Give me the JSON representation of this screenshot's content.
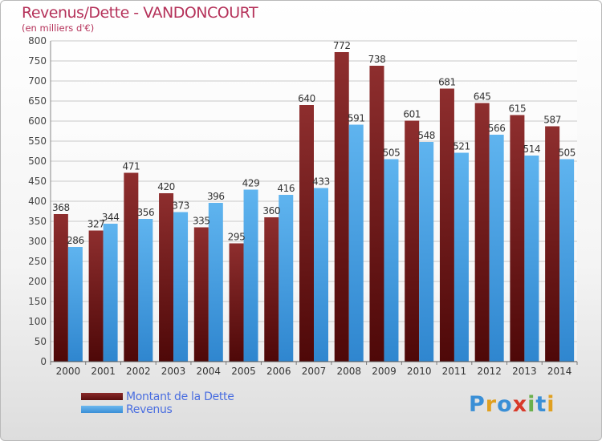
{
  "chart_data": {
    "type": "bar",
    "title": "Revenus/Dette - VANDONCOURT",
    "subtitle": "(en milliers d'€)",
    "categories": [
      "2000",
      "2001",
      "2002",
      "2003",
      "2004",
      "2005",
      "2006",
      "2007",
      "2008",
      "2009",
      "2010",
      "2011",
      "2012",
      "2013",
      "2014"
    ],
    "series": [
      {
        "name": "Montant de la Dette",
        "color": "#6e1a1a",
        "values": [
          368,
          327,
          471,
          420,
          335,
          295,
          360,
          640,
          772,
          738,
          601,
          681,
          645,
          615,
          587
        ]
      },
      {
        "name": "Revenus",
        "color": "#4aa3e6",
        "values": [
          286,
          344,
          356,
          373,
          396,
          429,
          416,
          433,
          591,
          505,
          548,
          521,
          566,
          514,
          505
        ]
      }
    ],
    "ylim": [
      0,
      800
    ],
    "yticks": [
      0,
      50,
      100,
      150,
      200,
      250,
      300,
      350,
      400,
      450,
      500,
      550,
      600,
      650,
      700,
      750,
      800
    ],
    "grid": true,
    "legend_position": "bottom-left"
  },
  "branding": {
    "logo_letters": [
      "P",
      "r",
      "o",
      "x",
      "i",
      "t",
      "i"
    ],
    "logo_colors": [
      "#3a8fd6",
      "#e0a020",
      "#3a8fd6",
      "#d83a2a",
      "#6ab04c",
      "#3a8fd6",
      "#e0a020"
    ]
  }
}
